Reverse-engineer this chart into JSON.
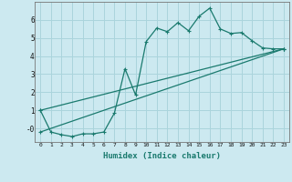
{
  "xlabel": "Humidex (Indice chaleur)",
  "bg_color": "#cce9f0",
  "grid_color": "#aad4dc",
  "line_color": "#1a7a6e",
  "xlim": [
    -0.5,
    23.5
  ],
  "ylim": [
    -0.75,
    7.0
  ],
  "xticks": [
    0,
    1,
    2,
    3,
    4,
    5,
    6,
    7,
    8,
    9,
    10,
    11,
    12,
    13,
    14,
    15,
    16,
    17,
    18,
    19,
    20,
    21,
    22,
    23
  ],
  "yticks": [
    0,
    1,
    2,
    3,
    4,
    5,
    6
  ],
  "ytick_labels": [
    "-0",
    "1",
    "2",
    "3",
    "4",
    "5",
    "6"
  ],
  "series1_x": [
    0,
    1,
    2,
    3,
    4,
    5,
    6,
    7,
    8,
    9,
    10,
    11,
    12,
    13,
    14,
    15,
    16,
    17,
    18,
    19,
    20,
    21,
    22,
    23
  ],
  "series1_y": [
    1.0,
    -0.2,
    -0.35,
    -0.45,
    -0.3,
    -0.3,
    -0.2,
    0.85,
    3.3,
    1.85,
    4.8,
    5.55,
    5.35,
    5.85,
    5.4,
    6.2,
    6.65,
    5.5,
    5.25,
    5.3,
    4.85,
    4.45,
    4.4,
    4.4
  ],
  "series2_x": [
    0,
    23
  ],
  "series2_y": [
    1.0,
    4.4
  ],
  "series3_x": [
    0,
    23
  ],
  "series3_y": [
    -0.2,
    4.4
  ],
  "markersize": 2.5,
  "linewidth": 0.9
}
